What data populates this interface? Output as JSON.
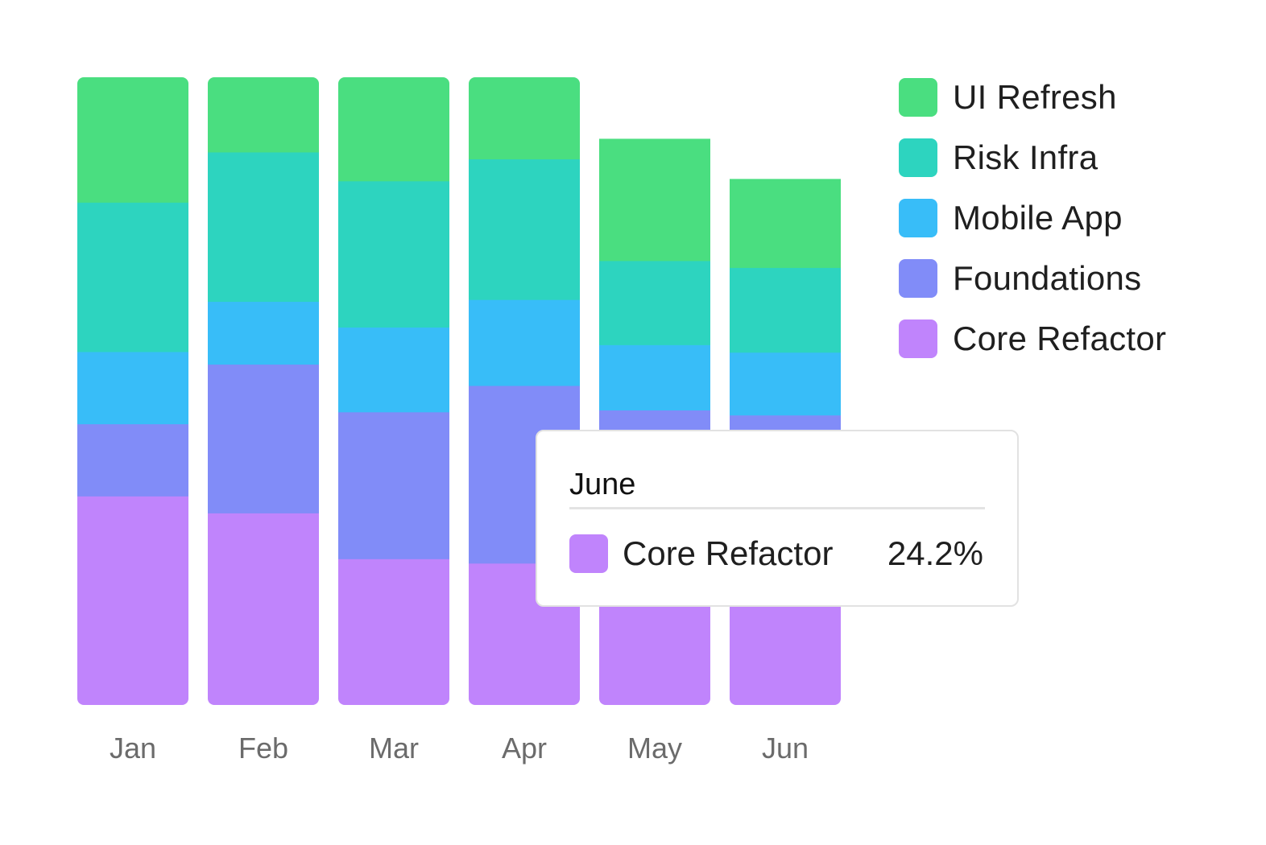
{
  "chart_data": {
    "type": "bar",
    "stacked": true,
    "normalized": true,
    "categories": [
      "Jan",
      "Feb",
      "Mar",
      "Apr",
      "May",
      "Jun"
    ],
    "ylim": [
      0,
      100
    ],
    "grid": false,
    "legend_position": "right",
    "series": [
      {
        "name": "Core Refactor",
        "color": "#c084fc",
        "values": [
          33.3,
          30.6,
          23.3,
          22.6,
          23.5,
          24.2
        ]
      },
      {
        "name": "Foundations",
        "color": "#818cf8",
        "values": [
          11.5,
          23.7,
          23.4,
          28.3,
          23.5,
          22.0
        ]
      },
      {
        "name": "Mobile App",
        "color": "#38bdf8",
        "values": [
          11.5,
          10.0,
          13.5,
          13.7,
          10.4,
          10.0
        ]
      },
      {
        "name": "Risk Infra",
        "color": "#2dd4bf",
        "values": [
          23.8,
          23.8,
          23.3,
          22.4,
          13.4,
          13.5
        ]
      },
      {
        "name": "UI Refresh",
        "color": "#4ade80",
        "values": [
          19.9,
          11.9,
          16.5,
          13.0,
          19.4,
          14.1
        ]
      }
    ]
  },
  "legend": {
    "items": [
      {
        "label": "UI Refresh",
        "color": "#4ade80"
      },
      {
        "label": "Risk Infra",
        "color": "#2dd4bf"
      },
      {
        "label": "Mobile App",
        "color": "#38bdf8"
      },
      {
        "label": "Foundations",
        "color": "#818cf8"
      },
      {
        "label": "Core Refactor",
        "color": "#c084fc"
      }
    ]
  },
  "tooltip": {
    "title": "June",
    "series_name": "Core Refactor",
    "value": "24.2%",
    "color": "#c084fc"
  }
}
